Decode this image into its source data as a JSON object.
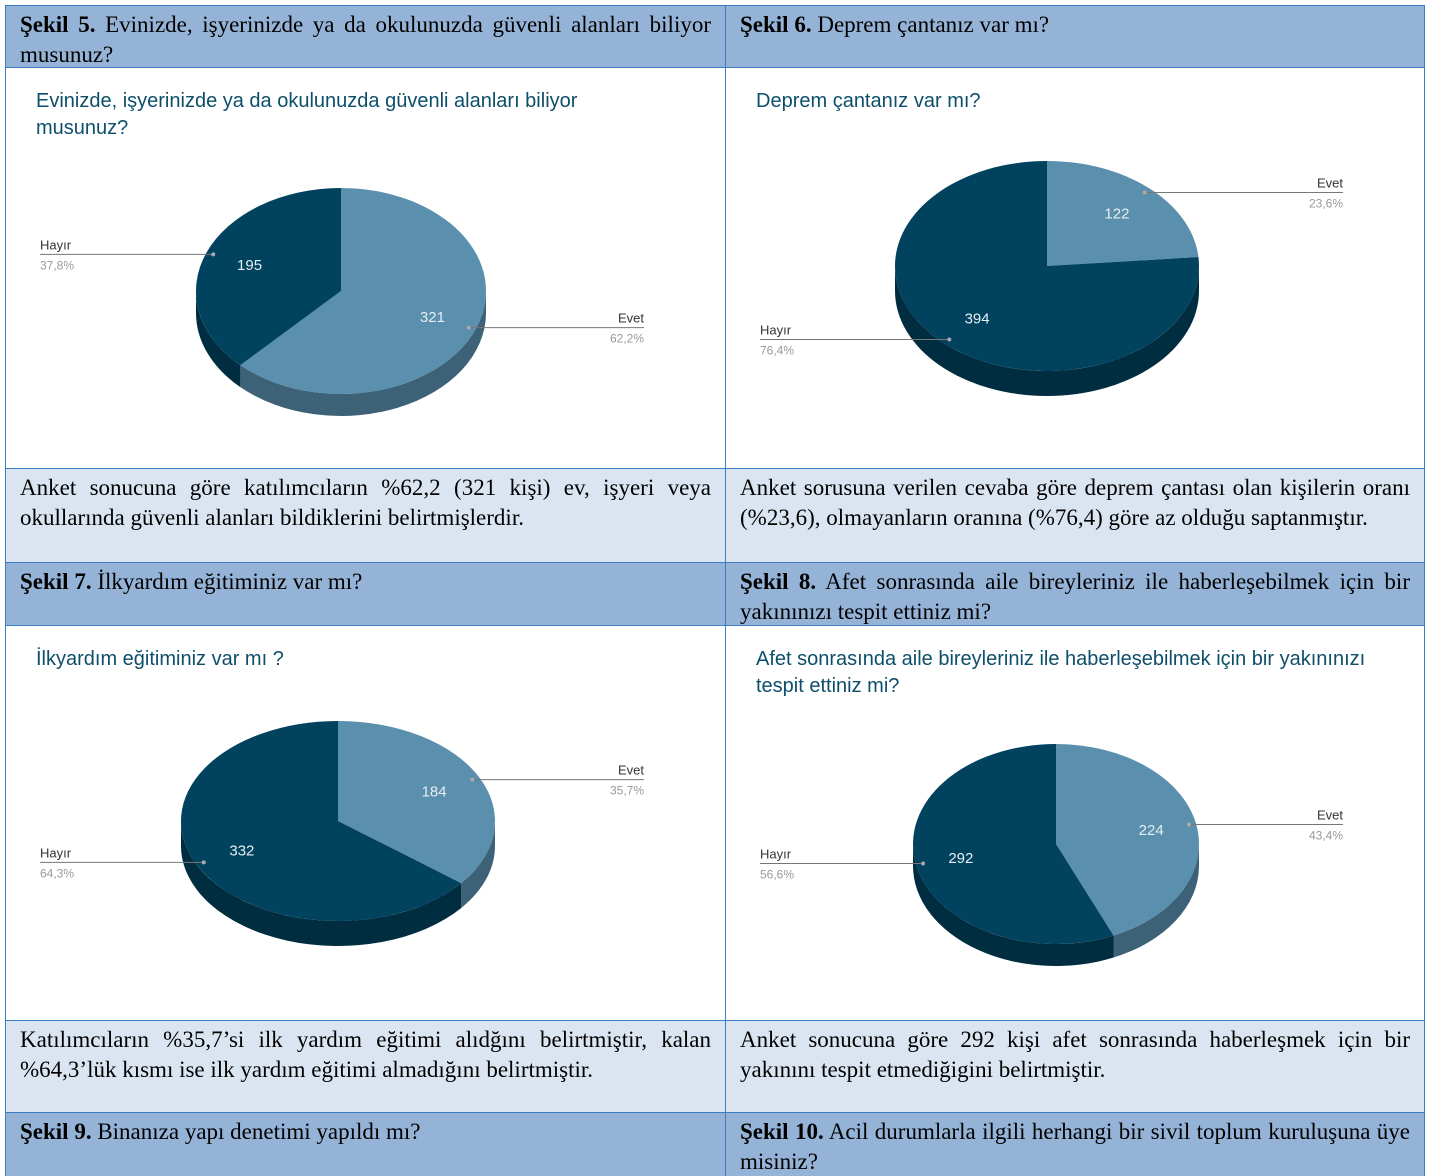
{
  "figures": [
    {
      "label": "Şekil 5.",
      "caption": "Evinizde, işyerinizde ya da okulunuzda güvenli alanları biliyor musunuz?",
      "chart": {
        "type": "pie",
        "title": "Evinizde, işyerinizde ya da okulunuzda güvenli alanları biliyor musunuz?",
        "categories": [
          "Evet",
          "Hayır"
        ],
        "values": [
          321,
          195
        ],
        "percent_labels": [
          "62,2%",
          "37,8%"
        ],
        "colors": [
          "#5a8fad",
          "#01425f"
        ]
      },
      "description": "Anket sonucuna göre katılımcıların %62,2 (321 kişi) ev, işyeri veya okullarında güvenli alanları bildiklerini belirtmişlerdir."
    },
    {
      "label": "Şekil 6.",
      "caption": "Deprem çantanız var mı?",
      "chart": {
        "type": "pie",
        "title": "Deprem çantanız var mı?",
        "categories": [
          "Evet",
          "Hayır"
        ],
        "values": [
          122,
          394
        ],
        "percent_labels": [
          "23,6%",
          "76,4%"
        ],
        "colors": [
          "#5a8fad",
          "#01425f"
        ]
      },
      "description": "Anket sorusuna verilen cevaba göre deprem çantası olan kişilerin oranı (%23,6), olmayanların oranına (%76,4) göre az olduğu saptanmıştır."
    },
    {
      "label": "Şekil 7.",
      "caption": "İlkyardım eğitiminiz var mı?",
      "chart": {
        "type": "pie",
        "title": "İlkyardım eğitiminiz var mı ?",
        "categories": [
          "Evet",
          "Hayır"
        ],
        "values": [
          184,
          332
        ],
        "percent_labels": [
          "35,7%",
          "64,3%"
        ],
        "colors": [
          "#5a8fad",
          "#01425f"
        ]
      },
      "description": "Katılımcıların %35,7’si ilk yardım eğitimi alıdğını belirtmiştir, kalan %64,3’lük kısmı ise ilk yardım eğitimi almadığını belirtmiştir."
    },
    {
      "label": "Şekil 8.",
      "caption": "Afet sonrasında aile bireyleriniz ile haberleşebilmek için bir yakınınızı tespit ettiniz mi?",
      "chart": {
        "type": "pie",
        "title": "Afet sonrasında aile bireyleriniz ile  haberleşebilmek için bir yakınınızı tespit ettiniz mi?",
        "categories": [
          "Evet",
          "Hayır"
        ],
        "values": [
          224,
          292
        ],
        "percent_labels": [
          "43,4%",
          "56,6%"
        ],
        "colors": [
          "#5a8fad",
          "#01425f"
        ]
      },
      "description": "Anket sonucuna göre 292 kişi afet sonrasında haberleşmek için bir yakınını tespit etmediğigini belirtmiştir."
    },
    {
      "label": "Şekil 9.",
      "caption": "Binanıza yapı denetimi yapıldı mı?"
    },
    {
      "label": "Şekil 10.",
      "caption": "Acil durumlarla ilgili herhangi bir sivil toplum kuruluşuna üye misiniz?"
    }
  ]
}
